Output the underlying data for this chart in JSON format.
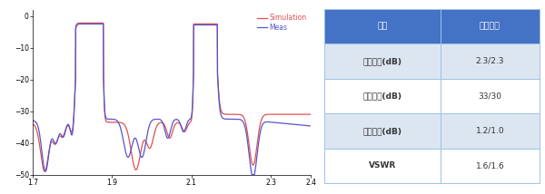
{
  "xlim": [
    1.7,
    2.4
  ],
  "ylim": [
    -50,
    2
  ],
  "xticks": [
    1.7,
    1.9,
    2.1,
    2.3,
    2.4
  ],
  "yticks": [
    0,
    -10,
    -20,
    -30,
    -40,
    -50
  ],
  "sim_color": "#e05050",
  "meas_color": "#5555cc",
  "bg_color": "#ffffff",
  "plot_bg": "#ffffff",
  "legend_sim": "Simulation",
  "legend_meas": "Meas",
  "table_header": [
    "指标",
    "测试结果"
  ],
  "table_rows": [
    [
      "通带损耗(dB)",
      "2.3/2.3"
    ],
    [
      "阻带抑制(dB)",
      "33/30"
    ],
    [
      "通带纹波(dB)",
      "1.2/1.0"
    ],
    [
      "VSWR",
      "1.6/1.6"
    ]
  ],
  "table_header_color": "#4472c4",
  "table_header_text_color": "#ffffff",
  "table_row_colors": [
    "#dce6f1",
    "#ffffff",
    "#dce6f1",
    "#ffffff"
  ],
  "table_border_color": "#9dc3e6"
}
